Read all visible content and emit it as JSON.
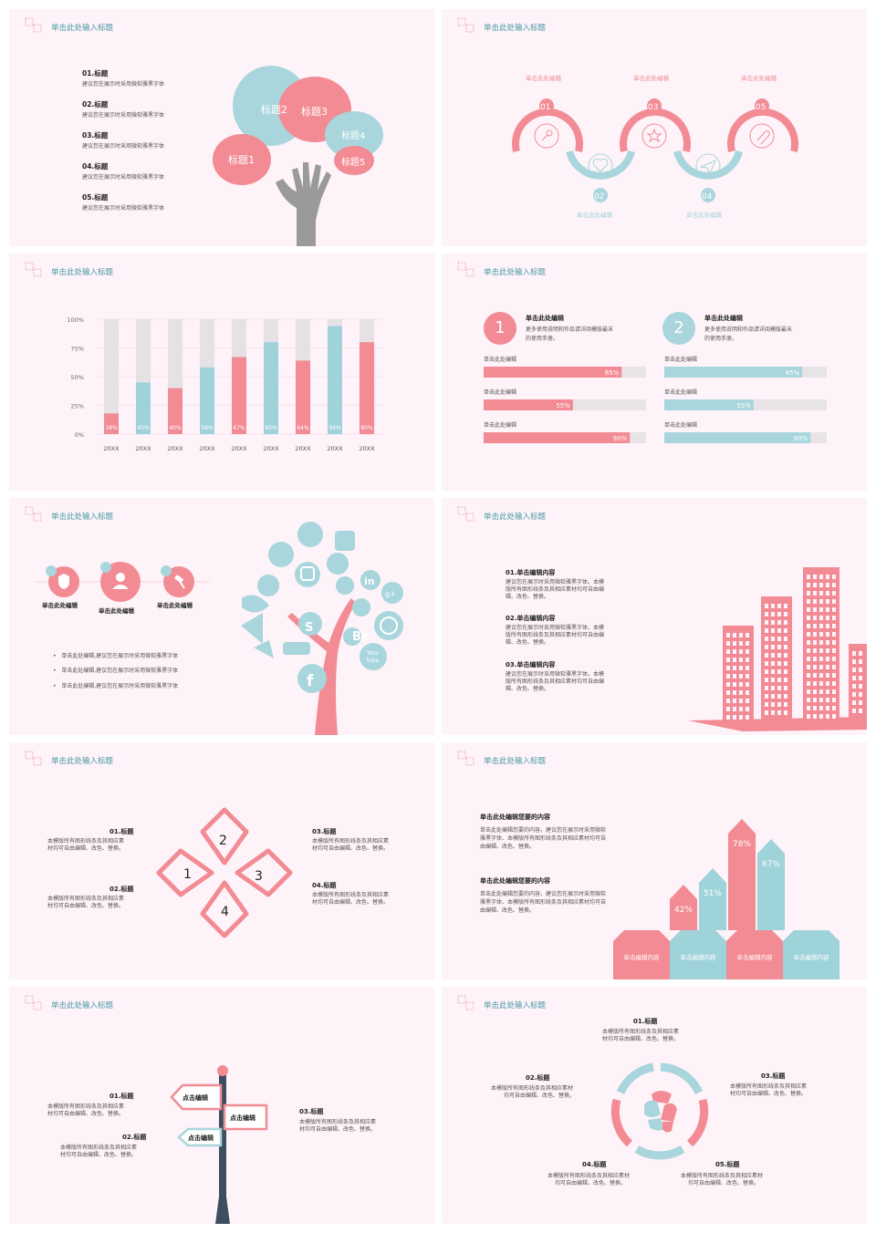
{
  "slide_title": "单击此处输入标题",
  "s1": {
    "items": [
      {
        "title": "01.标题",
        "desc": "建议您在展示时采用微软雅黑字体"
      },
      {
        "title": "02.标题",
        "desc": "建议您在展示时采用微软雅黑字体"
      },
      {
        "title": "03.标题",
        "desc": "建议您在展示时采用微软雅黑字体"
      },
      {
        "title": "04.标题",
        "desc": "建议您在展示时采用微软雅黑字体"
      },
      {
        "title": "05.标题",
        "desc": "建议您在展示时采用微软雅黑字体"
      }
    ],
    "bubbles": [
      "标题1",
      "标题2",
      "标题3",
      "标题4",
      "标题5"
    ]
  },
  "s2": {
    "top_labels": [
      "单击此处编辑",
      "单击此处编辑",
      "单击此处编辑"
    ],
    "bottom_labels": [
      "单击此处编辑",
      "单击此处编辑"
    ],
    "numbers": [
      "01",
      "02",
      "03",
      "04",
      "05"
    ]
  },
  "s3": {
    "chart_data": {
      "type": "bar",
      "categories": [
        "20XX",
        "20XX",
        "20XX",
        "20XX",
        "20XX",
        "20XX",
        "20XX",
        "20XX",
        "20XX"
      ],
      "values": [
        18,
        45,
        40,
        58,
        67,
        80,
        64,
        94,
        80
      ],
      "labels": [
        "18%",
        "45%",
        "40%",
        "58%",
        "67%",
        "80%",
        "64%",
        "94%",
        "80%"
      ],
      "yticks": [
        "100%",
        "75%",
        "50%",
        "25%",
        "0%"
      ],
      "ylim": [
        0,
        100
      ],
      "colors": [
        "#f28b94",
        "#9fd3da"
      ]
    }
  },
  "s4": {
    "groups": [
      {
        "num": "1",
        "title": "单击此处编辑",
        "desc1": "更多使用说明和作品请详阅模版最末",
        "desc2": "的使用手册。",
        "bars": [
          {
            "label": "单击此处编辑",
            "value": 85,
            "text": "85%"
          },
          {
            "label": "单击此处编辑",
            "value": 55,
            "text": "55%"
          },
          {
            "label": "单击此处编辑",
            "value": 90,
            "text": "90%"
          }
        ]
      },
      {
        "num": "2",
        "title": "单击此处编辑",
        "desc1": "更多使用说明和作品请详阅模版最末",
        "desc2": "的使用手册。",
        "bars": [
          {
            "label": "单击此处编辑",
            "value": 85,
            "text": "85%"
          },
          {
            "label": "单击此处编辑",
            "value": 55,
            "text": "55%"
          },
          {
            "label": "单击此处编辑",
            "value": 90,
            "text": "90%"
          }
        ]
      }
    ]
  },
  "s5": {
    "icons": [
      {
        "label": "单击此处编辑"
      },
      {
        "label": "单击此处编辑"
      },
      {
        "label": "单击此处编辑"
      }
    ],
    "bullets": [
      "单击此处编辑,建议您在展示时采用微软雅黑字体",
      "单击此处编辑,建议您在展示时采用微软雅黑字体",
      "单击此处编辑,建议您在展示时采用微软雅黑字体"
    ],
    "tree_texts": [
      "Bē",
      "You",
      "Tube",
      "in",
      "g+"
    ]
  },
  "s6": {
    "items": [
      {
        "title": "01.单击编辑内容",
        "l1": "建议您在展示时采用微软雅黑字体。本模",
        "l2": "版所有图形线条及其相应素材均可自由编",
        "l3": "辑、改色、替换。"
      },
      {
        "title": "02.单击编辑内容",
        "l1": "建议您在展示时采用微软雅黑字体。本模",
        "l2": "版所有图形线条及其相应素材均可自由编",
        "l3": "辑、改色、替换。"
      },
      {
        "title": "03.单击编辑内容",
        "l1": "建议您在展示时采用微软雅黑字体。本模",
        "l2": "版所有图形线条及其相应素材均可自由编",
        "l3": "辑、改色、替换。"
      }
    ]
  },
  "s7": {
    "items": [
      {
        "title": "01.标题",
        "l1": "本模版所有图形线条及其相应素",
        "l2": "材均可自由编辑、改色、替换。"
      },
      {
        "title": "02.标题",
        "l1": "本模版所有图形线条及其相应素",
        "l2": "材均可自由编辑、改色、替换。"
      },
      {
        "title": "03.标题",
        "l1": "本模版所有图形线条及其相应素",
        "l2": "材均可自由编辑、改色、替换。"
      },
      {
        "title": "04.标题",
        "l1": "本模版所有图形线条及其相应素",
        "l2": "材均可自由编辑、改色、替换。"
      }
    ],
    "petals": [
      "1",
      "2",
      "3",
      "4"
    ]
  },
  "s8": {
    "blocks": [
      {
        "title": "单击此处编辑您要的内容",
        "l1": "单击此处编辑您要的内容，建议您在展示时采用微软",
        "l2": "雅黑字体、本模版所有图形线条及其相应素材均可自",
        "l3": "由编辑、改色、替换。"
      },
      {
        "title": "单击此处编辑您要的内容",
        "l1": "单击此处编辑您要的内容，建议您在展示时采用微软",
        "l2": "雅黑字体、本模版所有图形线条及其相应素材均可自",
        "l3": "由编辑、改色、替换。"
      }
    ],
    "chart_data": {
      "type": "bar",
      "values": [
        42,
        51,
        78,
        67
      ],
      "labels": [
        "42%",
        "51%",
        "78%",
        "67%"
      ],
      "categories": [
        "单击编辑内容",
        "单击编辑内容",
        "单击编辑内容",
        "单击编辑内容"
      ],
      "colors": [
        "#f28b94",
        "#9fd3da",
        "#f28b94",
        "#9fd3da"
      ]
    }
  },
  "s9": {
    "items": [
      {
        "title": "01.标题",
        "l1": "本模版所有图形线条及其相应素",
        "l2": "材均可自由编辑、改色、替换。"
      },
      {
        "title": "02.标题",
        "l1": "本模版所有图形线条及其相应素",
        "l2": "材均可自由编辑、改色、替换。"
      },
      {
        "title": "03.标题",
        "l1": "本模版所有图形线条及其相应素",
        "l2": "材均可自由编辑、改色、替换。"
      }
    ],
    "signs": [
      "点击编辑",
      "点击编辑",
      "点击编辑"
    ]
  },
  "s10": {
    "items": [
      {
        "title": "01.标题",
        "l1": "本模版所有图形线条及其相应素",
        "l2": "材均可自由编辑、改色、替换。"
      },
      {
        "title": "02.标题",
        "l1": "本模版所有图形线条及其相应素材",
        "l2": "均可自由编辑、改色、替换。"
      },
      {
        "title": "03.标题",
        "l1": "本模版所有图形线条及其相应素",
        "l2": "材均可自由编辑、改色、替换。"
      },
      {
        "title": "04.标题",
        "l1": "本模版所有图形线条及其相应素材",
        "l2": "均可自由编辑、改色、替换。"
      },
      {
        "title": "05.标题",
        "l1": "本模版所有图形线条及其相应素材",
        "l2": "均可自由编辑、改色、替换。"
      }
    ]
  }
}
